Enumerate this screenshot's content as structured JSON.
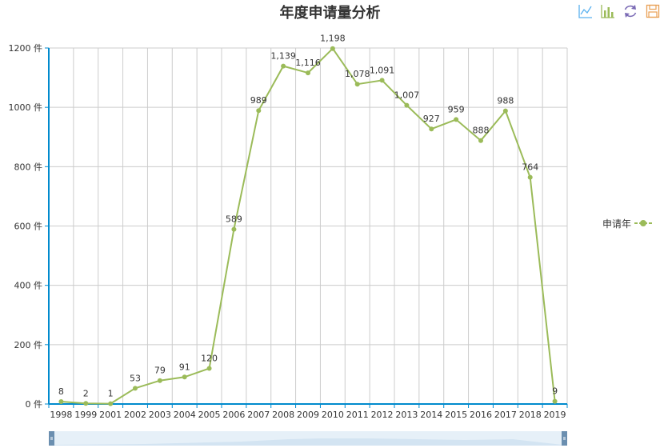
{
  "colors": {
    "series": "#9bbb59",
    "axis": "#008acd",
    "grid": "#cccccc",
    "text": "#333333",
    "zoom_fill": "#e6f0f8",
    "zoom_handle": "#6b8fb0"
  },
  "toolbox": {
    "icons": [
      "line-chart-icon",
      "bar-chart-icon",
      "refresh-icon",
      "save-icon"
    ]
  },
  "chart_data": {
    "type": "line",
    "title": "年度申请量分析",
    "categories": [
      "1998",
      "1999",
      "2001",
      "2002",
      "2003",
      "2004",
      "2005",
      "2006",
      "2007",
      "2008",
      "2009",
      "2010",
      "2011",
      "2012",
      "2013",
      "2014",
      "2015",
      "2016",
      "2017",
      "2018",
      "2019"
    ],
    "series": [
      {
        "name": "申请年",
        "values": [
          8,
          2,
          1,
          53,
          79,
          91,
          120,
          589,
          989,
          1139,
          1116,
          1198,
          1078,
          1091,
          1007,
          927,
          959,
          888,
          988,
          764,
          9
        ],
        "labels": [
          "8",
          "2",
          "1",
          "53",
          "79",
          "91",
          "120",
          "589",
          "989",
          "1,139",
          "1,116",
          "1,198",
          "1,078",
          "1,091",
          "1,007",
          "927",
          "959",
          "888",
          "988",
          "764",
          "9"
        ]
      }
    ],
    "y_ticks": [
      0,
      200,
      400,
      600,
      800,
      1000,
      1200
    ],
    "y_unit": "件",
    "ylim": [
      0,
      1200
    ],
    "grid": true,
    "legend_position": "right",
    "data_zoom": true
  }
}
